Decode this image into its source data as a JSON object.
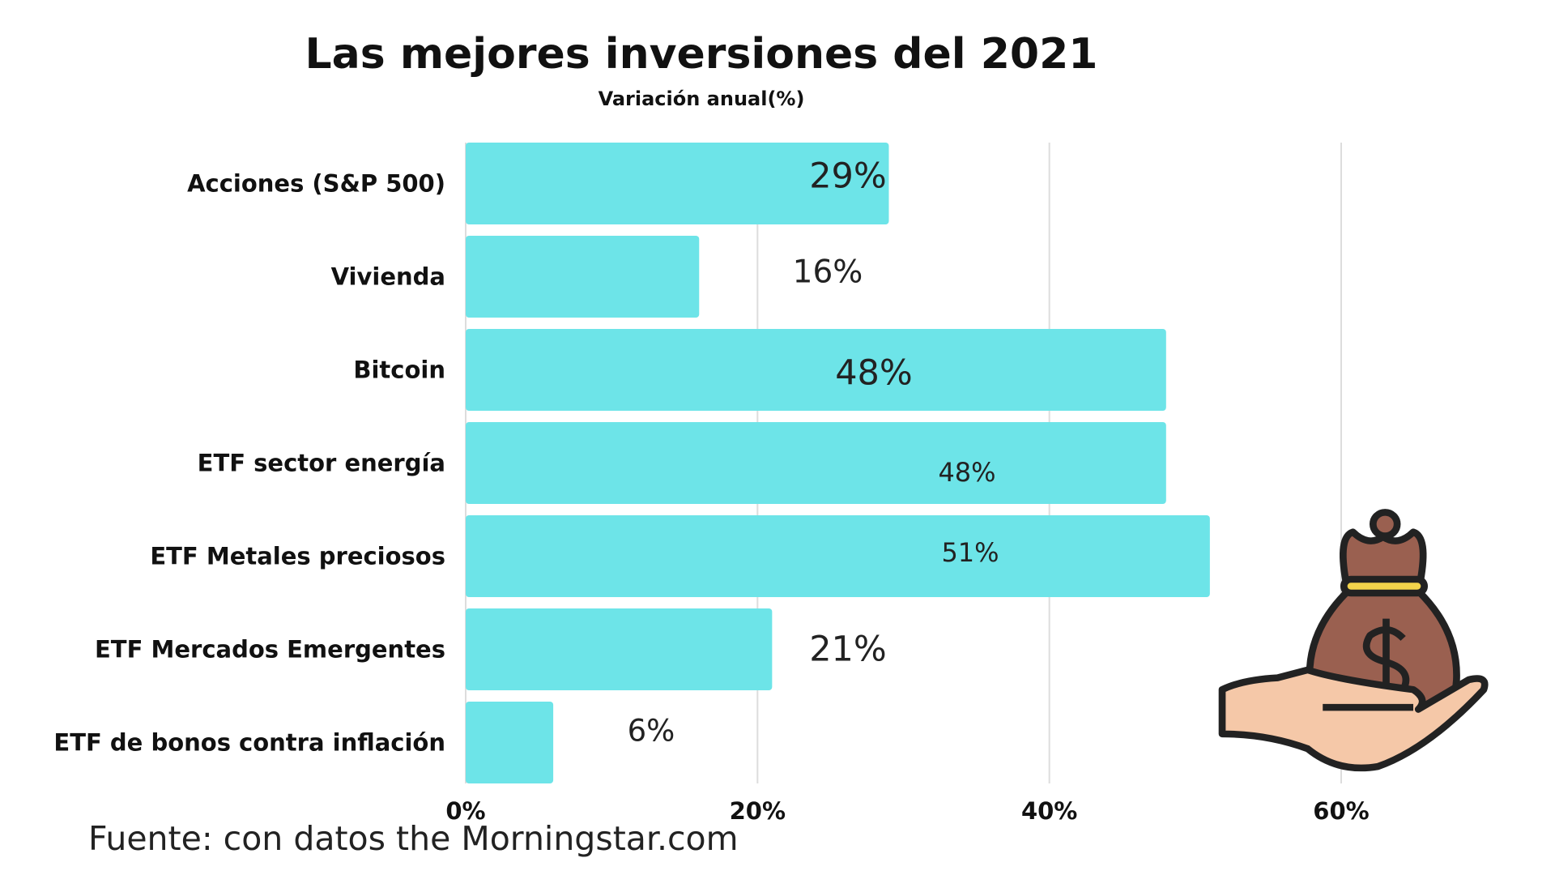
{
  "chart_data": {
    "type": "barh",
    "title": "Las mejores inversiones del 2021",
    "subtitle": "Variación anual(%)",
    "categories": [
      "Acciones (S&P 500)",
      "Vivienda",
      "Bitcoin",
      "ETF sector energía",
      "ETF Metales preciosos",
      "ETF Mercados Emergentes",
      "ETF de bonos contra inflación"
    ],
    "values": [
      29,
      16,
      48,
      48,
      51,
      21,
      6
    ],
    "value_labels": [
      "29%",
      "16%",
      "48%",
      "48%",
      "51%",
      "21%",
      "6%"
    ],
    "color": "#6de4e8",
    "xlim": [
      0,
      60
    ],
    "xticks": [
      {
        "value": 0,
        "label": "0%"
      },
      {
        "value": 20,
        "label": "20%"
      },
      {
        "value": 40,
        "label": "40%"
      },
      {
        "value": 60,
        "label": "60%"
      }
    ],
    "grid": true,
    "source": "Fuente: con datos the Morningstar.com"
  }
}
